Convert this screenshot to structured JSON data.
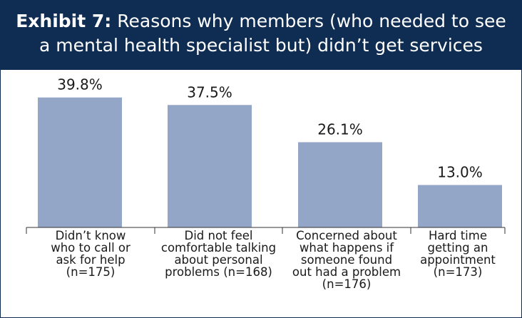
{
  "header": {
    "exhibit_label": "Exhibit 7:",
    "title_line1": "Reasons why members (who needed to see",
    "title_line2": "a mental health specialist but) didn’t get services"
  },
  "colors": {
    "header_bg": "#0f2d52",
    "bar": "#94a6c8",
    "axis": "#333333"
  },
  "chart_data": {
    "type": "bar",
    "title": "Reasons why members (who needed to see a mental health specialist but) didn’t get services",
    "ylim": [
      0,
      45
    ],
    "categories": [
      [
        "Didn’t know",
        "who to call or",
        "ask for help",
        "(n=175)"
      ],
      [
        "Did not feel",
        "comfortable talking",
        "about personal",
        "problems (n=168)"
      ],
      [
        "Concerned about",
        "what happens if",
        "someone found",
        "out had a problem",
        "(n=176)"
      ],
      [
        "Hard time",
        "getting an",
        "appointment",
        "(n=173)"
      ]
    ],
    "values": [
      39.8,
      37.5,
      26.1,
      13.0
    ],
    "value_labels": [
      "39.8%",
      "37.5%",
      "26.1%",
      "13.0%"
    ],
    "grid": false,
    "legend": "none"
  }
}
